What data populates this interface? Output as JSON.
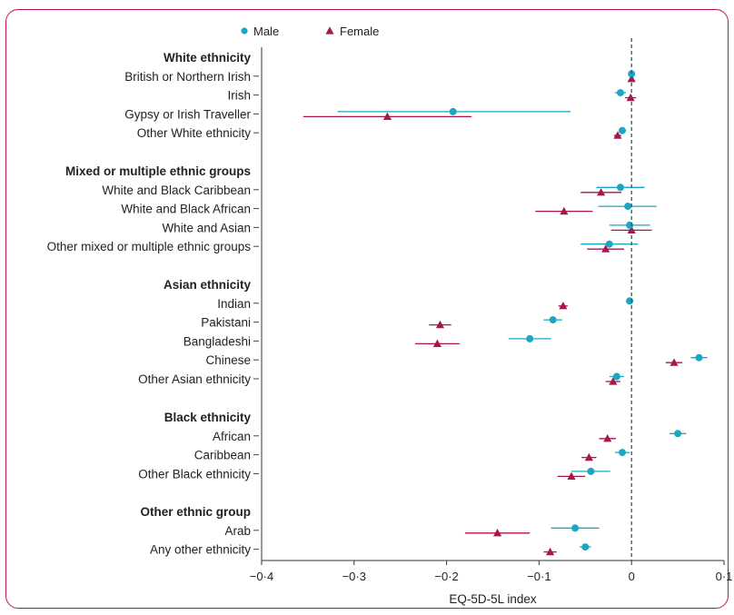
{
  "colors": {
    "male": "#1ba6c3",
    "female": "#a8164f",
    "frame": "#c0125a",
    "zero_line": "#2f5a55"
  },
  "chart_data": {
    "type": "forest",
    "xlabel": "EQ-5D-5L index",
    "xlim": [
      -0.4,
      0.1
    ],
    "xticks": [
      -0.4,
      -0.3,
      -0.2,
      -0.1,
      0,
      0.1
    ],
    "xtick_labels": [
      "−0·4",
      "−0·3",
      "−0·2",
      "−0·1",
      "0",
      "0·1"
    ],
    "reference_line": 0,
    "legend": {
      "placement": "top-left",
      "entries": [
        {
          "name": "Male",
          "marker": "circle"
        },
        {
          "name": "Female",
          "marker": "triangle"
        }
      ]
    },
    "groups": [
      {
        "title": "White ethnicity",
        "rows": [
          {
            "label": "British or Northern Irish",
            "male": [
              0.0,
              0.0,
              0.0
            ],
            "female": [
              0.0,
              0.0,
              0.0
            ]
          },
          {
            "label": "Irish",
            "male": [
              -0.012,
              -0.018,
              -0.006
            ],
            "female": [
              -0.001,
              -0.007,
              0.005
            ]
          },
          {
            "label": "Gypsy or Irish Traveller",
            "male": [
              -0.193,
              -0.318,
              -0.066
            ],
            "female": [
              -0.264,
              -0.355,
              -0.173
            ]
          },
          {
            "label": "Other White ethnicity",
            "male": [
              -0.01,
              -0.014,
              -0.006
            ],
            "female": [
              -0.015,
              -0.019,
              -0.011
            ]
          }
        ]
      },
      {
        "title": "Mixed or multiple ethnic groups",
        "rows": [
          {
            "label": "White and Black Caribbean",
            "male": [
              -0.012,
              -0.038,
              0.014
            ],
            "female": [
              -0.033,
              -0.055,
              -0.011
            ]
          },
          {
            "label": "White and Black African",
            "male": [
              -0.004,
              -0.036,
              0.027
            ],
            "female": [
              -0.073,
              -0.104,
              -0.042
            ]
          },
          {
            "label": "White and Asian",
            "male": [
              -0.002,
              -0.024,
              0.02
            ],
            "female": [
              0.0,
              -0.022,
              0.022
            ]
          },
          {
            "label": "Other mixed or multiple ethnic groups",
            "male": [
              -0.024,
              -0.055,
              0.007
            ],
            "female": [
              -0.028,
              -0.048,
              -0.008
            ]
          }
        ]
      },
      {
        "title": "Asian ethnicity",
        "rows": [
          {
            "label": "Indian",
            "male": [
              -0.002,
              -0.006,
              0.002
            ],
            "female": [
              -0.074,
              -0.079,
              -0.069
            ]
          },
          {
            "label": "Pakistani",
            "male": [
              -0.085,
              -0.095,
              -0.075
            ],
            "female": [
              -0.207,
              -0.219,
              -0.195
            ]
          },
          {
            "label": "Bangladeshi",
            "male": [
              -0.11,
              -0.133,
              -0.087
            ],
            "female": [
              -0.21,
              -0.234,
              -0.186
            ]
          },
          {
            "label": "Chinese",
            "male": [
              0.073,
              0.064,
              0.082
            ],
            "female": [
              0.046,
              0.037,
              0.055
            ]
          },
          {
            "label": "Other Asian ethnicity",
            "male": [
              -0.016,
              -0.024,
              -0.008
            ],
            "female": [
              -0.02,
              -0.028,
              -0.012
            ]
          }
        ]
      },
      {
        "title": "Black ethnicity",
        "rows": [
          {
            "label": "African",
            "male": [
              0.05,
              0.041,
              0.059
            ],
            "female": [
              -0.026,
              -0.035,
              -0.017
            ]
          },
          {
            "label": "Caribbean",
            "male": [
              -0.01,
              -0.018,
              -0.002
            ],
            "female": [
              -0.046,
              -0.054,
              -0.038
            ]
          },
          {
            "label": "Other Black ethnicity",
            "male": [
              -0.044,
              -0.065,
              -0.023
            ],
            "female": [
              -0.065,
              -0.08,
              -0.05
            ]
          }
        ]
      },
      {
        "title": "Other ethnic group",
        "rows": [
          {
            "label": "Arab",
            "male": [
              -0.061,
              -0.087,
              -0.035
            ],
            "female": [
              -0.145,
              -0.18,
              -0.11
            ]
          },
          {
            "label": "Any other ethnicity",
            "male": [
              -0.05,
              -0.056,
              -0.044
            ],
            "female": [
              -0.088,
              -0.095,
              -0.081
            ]
          }
        ]
      }
    ]
  }
}
